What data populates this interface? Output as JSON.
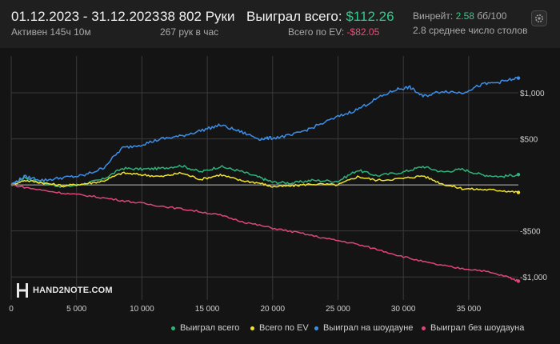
{
  "header": {
    "date_range": "01.12.2023 - 31.12.2023",
    "active_time": "Активен 145ч 10м",
    "hands": "38 802 Руки",
    "hands_per_hour": "267 рук в час",
    "won_label": "Выиграл всего:",
    "won_value": "$112.26",
    "ev_label": "Всего по EV:",
    "ev_value": "-$82.05",
    "winrate_label": "Винрейт:",
    "winrate_value": "2.58",
    "winrate_unit": "бб/100",
    "tables_text": "2.8 среднее число столов"
  },
  "logo": {
    "text": "HAND2NOTE.COM"
  },
  "icons": {
    "settings": "gear-icon"
  },
  "colors": {
    "won_total": "#2fb37a",
    "ev_total": "#f0e32c",
    "showdown": "#3c8fe8",
    "non_showdown": "#e0457a",
    "grid": "#3a3a3a",
    "zero_line": "#bdbdbd"
  },
  "chart_data": {
    "type": "line",
    "xlim": [
      0,
      38802
    ],
    "ylim": [
      -1250,
      1400
    ],
    "x_ticks": [
      0,
      5000,
      10000,
      15000,
      20000,
      25000,
      30000,
      35000
    ],
    "x_tick_labels": [
      "0",
      "5 000",
      "10 000",
      "15 000",
      "20 000",
      "25 000",
      "30 000",
      "35 000"
    ],
    "y_ticks": [
      1000,
      500,
      -500,
      -1000
    ],
    "y_tick_labels": [
      "$1,000",
      "$500",
      "-$500",
      "-$1,000"
    ],
    "grid": true,
    "legend_position": "bottom-right",
    "series": [
      {
        "name": "Выиграл всего",
        "color_key": "won_total",
        "x": [
          0,
          1000,
          2500,
          4000,
          5500,
          7000,
          8500,
          10000,
          11500,
          13000,
          14500,
          16000,
          17500,
          19000,
          20000,
          21500,
          23000,
          25000,
          26500,
          28000,
          30000,
          31500,
          33000,
          34500,
          36000,
          37500,
          38802
        ],
        "y": [
          0,
          80,
          20,
          -20,
          10,
          60,
          180,
          170,
          180,
          210,
          140,
          200,
          150,
          80,
          30,
          20,
          50,
          40,
          160,
          100,
          140,
          200,
          140,
          170,
          110,
          90,
          112
        ]
      },
      {
        "name": "Всего по EV",
        "color_key": "ev_total",
        "x": [
          0,
          1000,
          2500,
          4000,
          5500,
          7000,
          8500,
          10000,
          11500,
          13000,
          14500,
          16000,
          17500,
          19000,
          20000,
          21500,
          23000,
          25000,
          26500,
          28000,
          30000,
          31500,
          33000,
          34500,
          36000,
          37500,
          38802
        ],
        "y": [
          0,
          50,
          20,
          -10,
          10,
          40,
          130,
          110,
          90,
          130,
          60,
          110,
          50,
          20,
          -20,
          -10,
          10,
          0,
          90,
          50,
          70,
          100,
          10,
          -40,
          -50,
          -60,
          -82
        ]
      },
      {
        "name": "Выиграл на шоудауне",
        "color_key": "showdown",
        "x": [
          0,
          1000,
          2500,
          4000,
          5500,
          7000,
          8500,
          10000,
          11500,
          13000,
          14500,
          16000,
          17500,
          19000,
          20000,
          21500,
          23000,
          25000,
          26500,
          28000,
          29500,
          30500,
          31500,
          33000,
          34500,
          36000,
          37500,
          38802
        ],
        "y": [
          0,
          90,
          50,
          80,
          100,
          180,
          400,
          440,
          500,
          530,
          590,
          650,
          580,
          500,
          510,
          540,
          620,
          740,
          820,
          940,
          1040,
          1060,
          960,
          1020,
          1000,
          1090,
          1120,
          1160
        ]
      },
      {
        "name": "Выиграл без шоудауна",
        "color_key": "non_showdown",
        "x": [
          0,
          2000,
          4000,
          6000,
          8000,
          10000,
          12000,
          14000,
          16000,
          18000,
          20000,
          22000,
          24000,
          26000,
          28000,
          30000,
          32000,
          34000,
          36000,
          38000,
          38802
        ],
        "y": [
          0,
          -50,
          -90,
          -120,
          -160,
          -200,
          -240,
          -280,
          -330,
          -410,
          -470,
          -520,
          -580,
          -630,
          -700,
          -780,
          -850,
          -900,
          -930,
          -1000,
          -1045
        ]
      }
    ]
  }
}
